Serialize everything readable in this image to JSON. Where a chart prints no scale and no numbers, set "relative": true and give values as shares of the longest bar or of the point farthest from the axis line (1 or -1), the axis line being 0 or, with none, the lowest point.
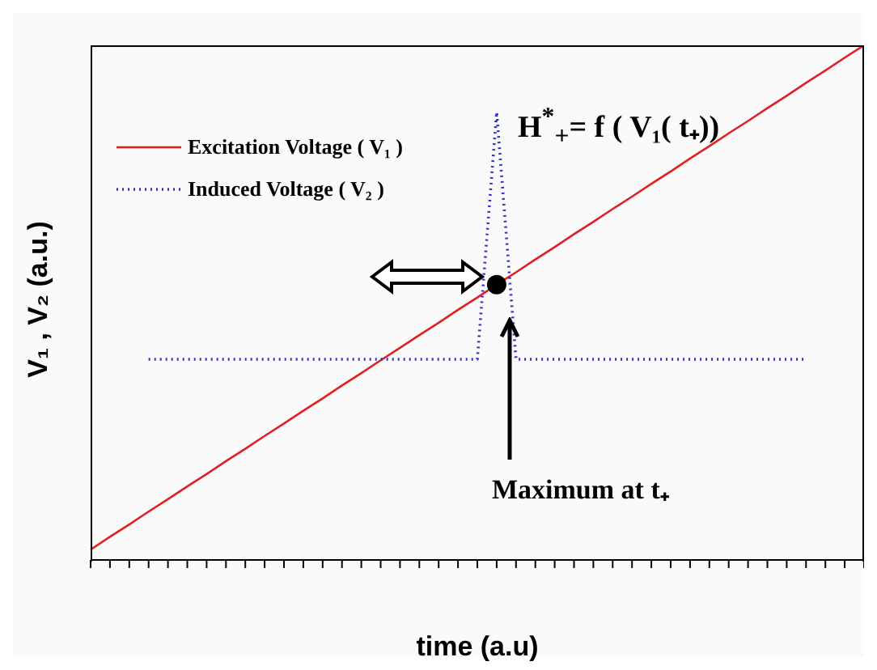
{
  "chart_data": {
    "type": "line",
    "relative": true,
    "xlabel": "time (a.u)",
    "ylabel": "V₁ , V₂ (a.u.)",
    "legend": "top left",
    "marker": "none",
    "grid": false,
    "categories": [
      null,
      null,
      null,
      null,
      null,
      null,
      null,
      null,
      null,
      null,
      null,
      null,
      null,
      null,
      null,
      null,
      null,
      null,
      null,
      null,
      null,
      null,
      null,
      null,
      null,
      null,
      null,
      null,
      null,
      null,
      null,
      null,
      null,
      null,
      null,
      null,
      null,
      null,
      null,
      null,
      null
    ],
    "annotations": [
      "H$^{*}$$_{+}$= f ( V₁( t₊))",
      "Maximum at t₊"
    ],
    "series": [
      {
        "name": "Excitation Voltage ( V₁ )",
        "color": "#e02020",
        "line_style": "solid",
        "values": [
          0.02,
          0.045,
          0.069,
          0.094,
          0.118,
          0.143,
          0.167,
          0.192,
          0.216,
          0.241,
          0.265,
          0.29,
          0.314,
          0.339,
          0.363,
          0.388,
          0.412,
          0.437,
          0.461,
          0.486,
          0.51,
          0.535,
          0.559,
          0.584,
          0.608,
          0.633,
          0.657,
          0.682,
          0.706,
          0.731,
          0.755,
          0.78,
          0.804,
          0.829,
          0.853,
          0.878,
          0.902,
          0.927,
          0.951,
          0.976,
          1
        ]
      },
      {
        "name": "Induced Voltage ( V₂ )",
        "color": "#3030c8",
        "line_style": "dotted",
        "values": [
          null,
          null,
          null,
          0.39,
          0.39,
          0.39,
          0.39,
          0.39,
          0.39,
          0.39,
          0.39,
          0.39,
          0.39,
          0.39,
          0.39,
          0.39,
          0.39,
          0.39,
          0.39,
          0.39,
          0.39,
          0.87,
          0.39,
          0.39,
          0.39,
          0.39,
          0.39,
          0.39,
          0.39,
          0.39,
          0.39,
          0.39,
          0.39,
          0.39,
          0.39,
          0.39,
          0.39,
          0.39,
          null,
          null,
          null
        ]
      }
    ]
  }
}
